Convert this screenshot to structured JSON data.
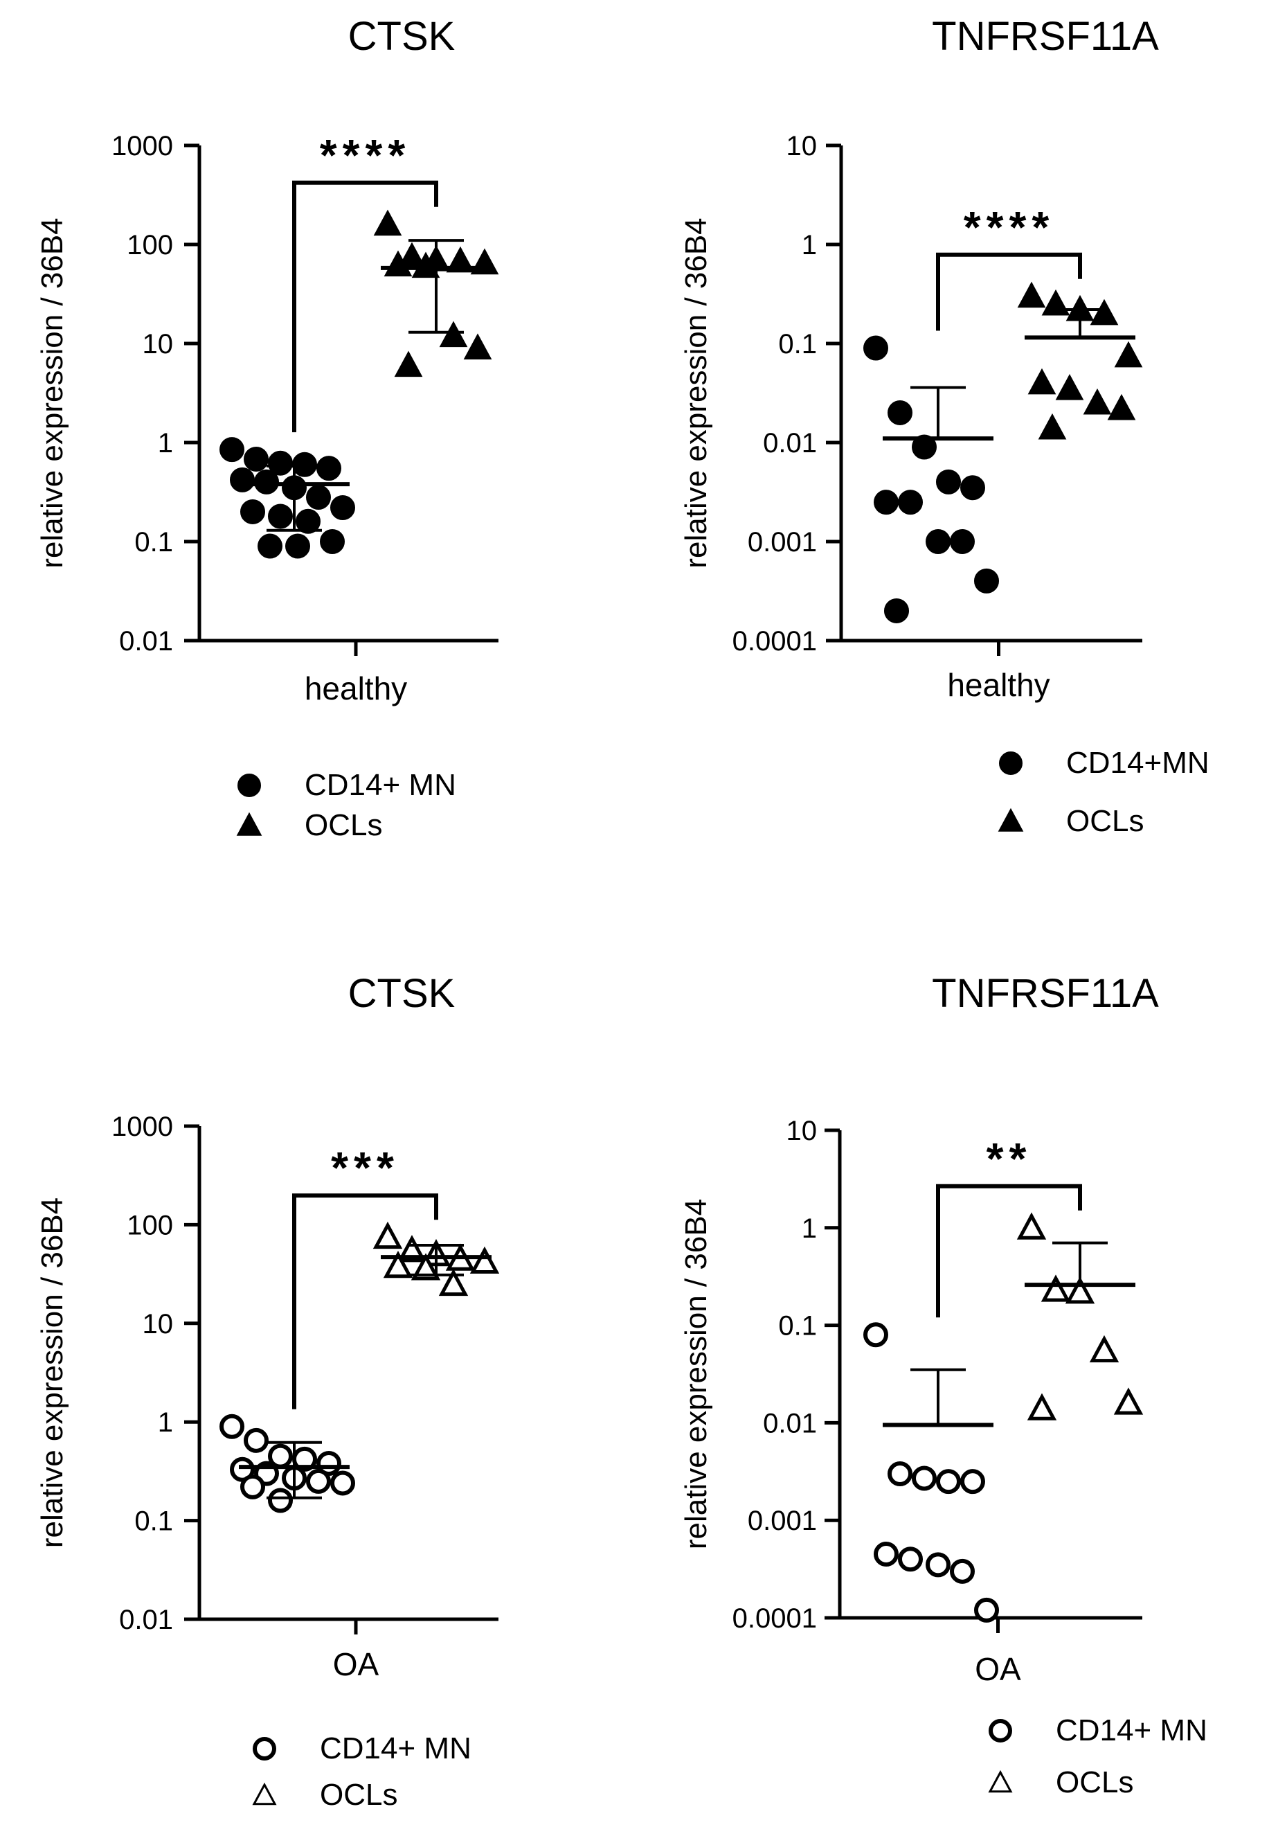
{
  "chart_data": [
    {
      "type": "scatter",
      "title": "CTSK",
      "ylabel": "relative expression / 36B4",
      "yscale": "log",
      "ylim": [
        0.01,
        1000
      ],
      "yticks": [
        "0.01",
        "0.1",
        "1",
        "10",
        "100",
        "1000"
      ],
      "category": "healthy",
      "significance": "****",
      "filled": true,
      "series": [
        {
          "name": "CD14+ MN",
          "marker": "circle",
          "values": [
            0.85,
            0.68,
            0.62,
            0.6,
            0.55,
            0.42,
            0.4,
            0.35,
            0.28,
            0.22,
            0.2,
            0.18,
            0.16,
            0.1,
            0.09,
            0.09
          ],
          "center": 0.38,
          "err_low": 0.13,
          "err_high": 0.58
        },
        {
          "name": "OCLs",
          "marker": "triangle",
          "values": [
            160,
            75,
            70,
            68,
            65,
            62,
            60,
            12,
            9,
            6
          ],
          "center": 58,
          "err_low": 13,
          "err_high": 110
        }
      ],
      "legend": [
        "CD14+ MN",
        "OCLs"
      ]
    },
    {
      "type": "scatter",
      "title": "TNFRSF11A",
      "ylabel": "relative expression / 36B4",
      "yscale": "log",
      "ylim": [
        0.0001,
        10
      ],
      "yticks": [
        "0.0001",
        "0.001",
        "0.01",
        "0.1",
        "1",
        "10"
      ],
      "category": "healthy",
      "significance": "****",
      "filled": true,
      "series": [
        {
          "name": "CD14+MN",
          "marker": "circle",
          "values": [
            0.09,
            0.02,
            0.009,
            0.004,
            0.0035,
            0.0025,
            0.0025,
            0.001,
            0.001,
            0.0004,
            0.0002
          ],
          "center": 0.011,
          "err_high": 0.036
        },
        {
          "name": "OCLs",
          "marker": "triangle",
          "values": [
            0.3,
            0.25,
            0.22,
            0.2,
            0.075,
            0.04,
            0.035,
            0.025,
            0.022,
            0.014
          ],
          "center": 0.115,
          "err_high": 0.22
        }
      ],
      "legend": [
        "CD14+MN",
        "OCLs"
      ]
    },
    {
      "type": "scatter",
      "title": "CTSK",
      "ylabel": "relative expression / 36B4",
      "yscale": "log",
      "ylim": [
        0.01,
        1000
      ],
      "yticks": [
        "0.01",
        "0.1",
        "1",
        "10",
        "100",
        "1000"
      ],
      "category": "OA",
      "significance": "***",
      "filled": false,
      "series": [
        {
          "name": "CD14+ MN",
          "marker": "circle",
          "values": [
            0.9,
            0.65,
            0.45,
            0.42,
            0.38,
            0.33,
            0.3,
            0.27,
            0.25,
            0.24,
            0.22,
            0.16
          ],
          "center": 0.35,
          "err_low": 0.17,
          "err_high": 0.62
        },
        {
          "name": "OCLs",
          "marker": "triangle",
          "values": [
            75,
            55,
            50,
            45,
            42,
            38,
            36,
            25
          ],
          "center": 47,
          "err_low": 31,
          "err_high": 62
        }
      ],
      "legend": [
        "CD14+ MN",
        "OCLs"
      ]
    },
    {
      "type": "scatter",
      "title": "TNFRSF11A",
      "ylabel": "relative expression / 36B4",
      "yscale": "log",
      "ylim": [
        0.0001,
        10
      ],
      "yticks": [
        "0.0001",
        "0.001",
        "0.01",
        "0.1",
        "1",
        "10"
      ],
      "category": "OA",
      "significance": "**",
      "filled": false,
      "series": [
        {
          "name": "CD14+ MN",
          "marker": "circle",
          "values": [
            0.08,
            0.003,
            0.0027,
            0.0025,
            0.0025,
            0.00045,
            0.0004,
            0.00035,
            0.0003,
            0.00012
          ],
          "center": 0.0095,
          "err_high": 0.035
        },
        {
          "name": "OCLs",
          "marker": "triangle",
          "values": [
            1.0,
            0.23,
            0.22,
            0.055,
            0.016,
            0.014
          ],
          "center": 0.26,
          "err_high": 0.7
        }
      ],
      "legend": [
        "CD14+ MN",
        "OCLs"
      ]
    }
  ]
}
